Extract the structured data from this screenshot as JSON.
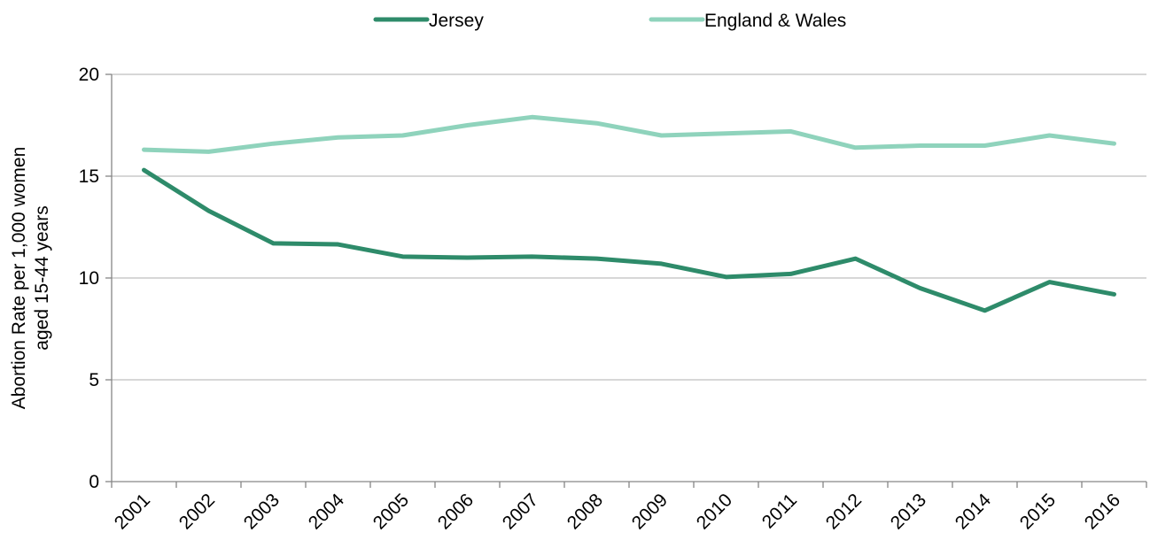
{
  "chart_data": {
    "type": "line",
    "categories": [
      "2001",
      "2002",
      "2003",
      "2004",
      "2005",
      "2006",
      "2007",
      "2008",
      "2009",
      "2010",
      "2011",
      "2012",
      "2013",
      "2014",
      "2015",
      "2016"
    ],
    "series": [
      {
        "name": "Jersey",
        "color": "#2e8b6a",
        "values": [
          15.3,
          13.3,
          11.7,
          11.65,
          11.05,
          11.0,
          11.05,
          10.95,
          10.7,
          10.05,
          10.2,
          10.95,
          9.5,
          8.4,
          9.8,
          9.2
        ]
      },
      {
        "name": "England & Wales",
        "color": "#8fd3bc",
        "values": [
          16.3,
          16.2,
          16.6,
          16.9,
          17.0,
          17.5,
          17.9,
          17.6,
          17.0,
          17.1,
          17.2,
          16.4,
          16.5,
          16.5,
          17.0,
          16.6
        ]
      }
    ],
    "ylabel_lines": [
      "Abortion Rate per 1,000 women",
      "aged 15-44 years"
    ],
    "xlabel": "",
    "ylim": [
      0,
      20
    ],
    "yticks": [
      0,
      5,
      10,
      15,
      20
    ],
    "grid": true,
    "legend_position": "top-center",
    "gridline_color": "#bfbfbf",
    "axis_color": "#868686"
  }
}
